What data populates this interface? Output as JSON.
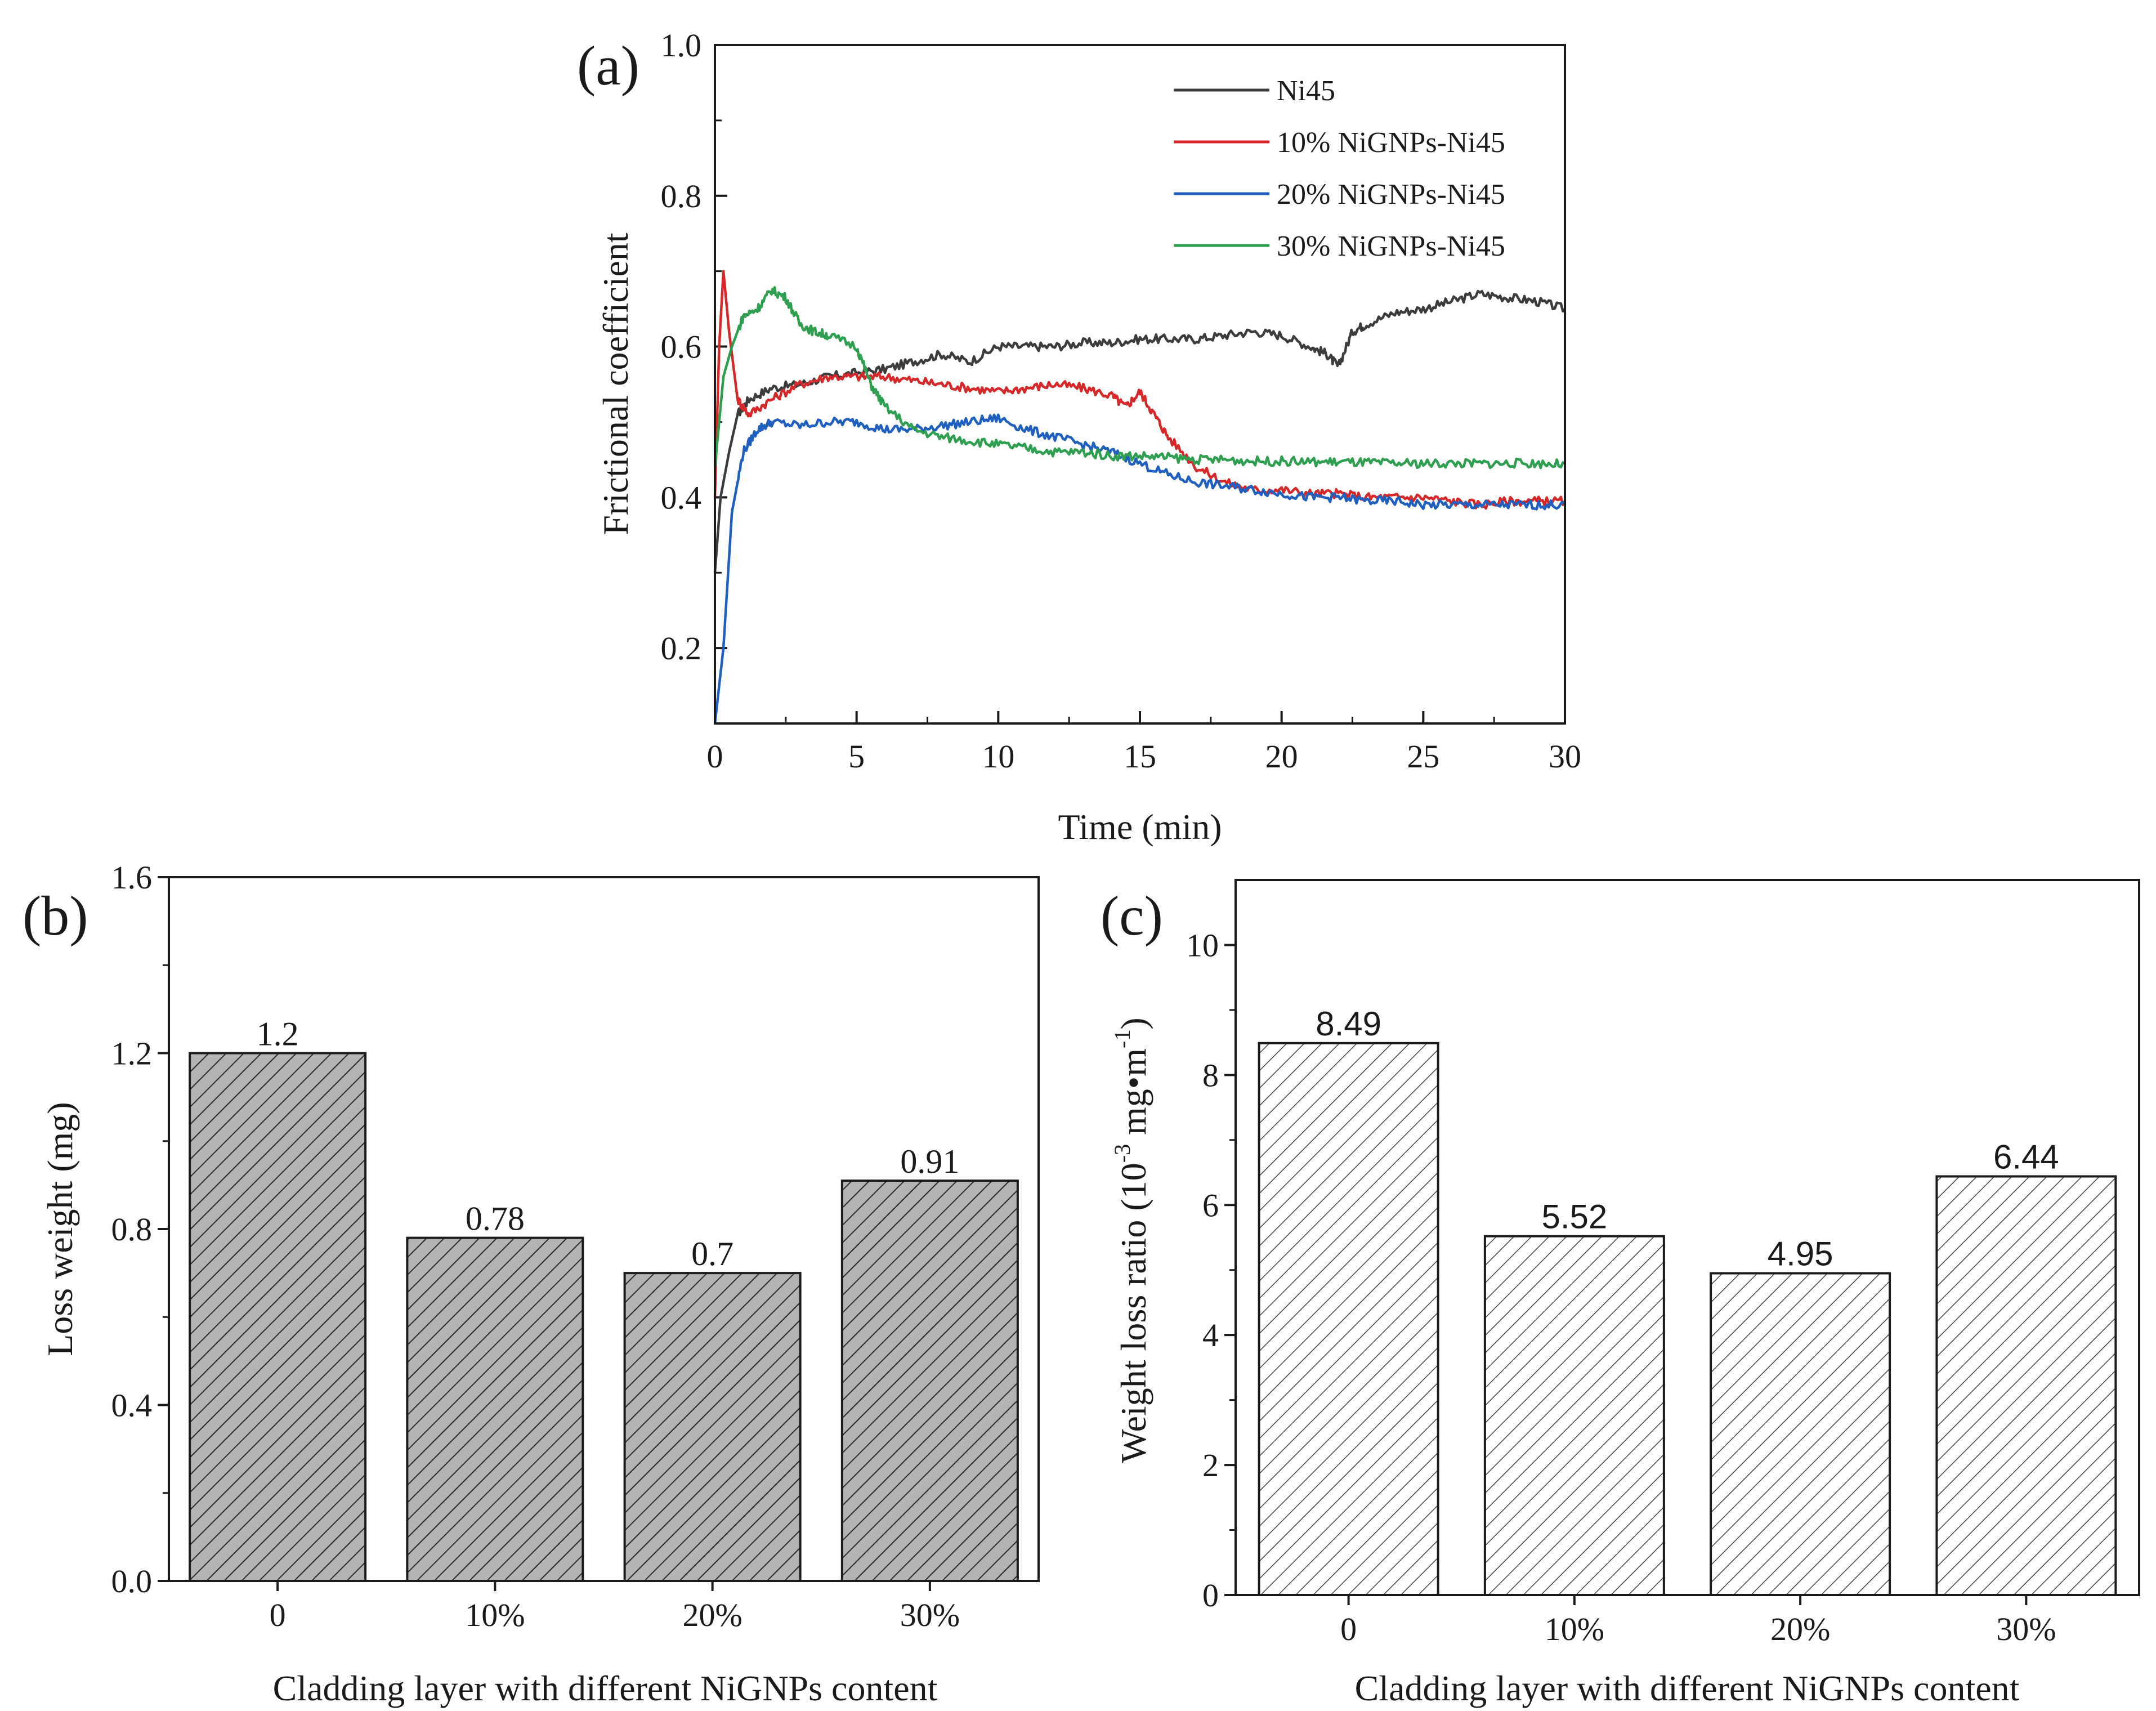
{
  "chart_data": [
    {
      "panel_label": "(a)",
      "type": "line",
      "xlabel": "Time (min)",
      "ylabel": "Frictional coefficient",
      "xlim": [
        0,
        30
      ],
      "ylim": [
        0.1,
        1.0
      ],
      "x_ticks": [
        0,
        5,
        10,
        15,
        20,
        25,
        30
      ],
      "y_ticks": [
        0.2,
        0.4,
        0.6,
        0.8,
        1.0
      ],
      "y_tick_labels": [
        "0.2",
        "0.4",
        "0.6",
        "0.8",
        "1.0"
      ],
      "legend_position": "top-right",
      "grid": false,
      "series": [
        {
          "name": "Ni45",
          "color": "#3c3c3c",
          "points": [
            [
              0,
              0.3
            ],
            [
              0.2,
              0.4
            ],
            [
              0.5,
              0.46
            ],
            [
              0.8,
              0.51
            ],
            [
              1.2,
              0.53
            ],
            [
              2,
              0.545
            ],
            [
              3,
              0.55
            ],
            [
              4,
              0.56
            ],
            [
              5,
              0.565
            ],
            [
              6,
              0.57
            ],
            [
              7,
              0.58
            ],
            [
              8,
              0.59
            ],
            [
              9,
              0.58
            ],
            [
              10,
              0.6
            ],
            [
              11,
              0.6
            ],
            [
              12,
              0.6
            ],
            [
              13,
              0.605
            ],
            [
              14,
              0.605
            ],
            [
              15,
              0.61
            ],
            [
              16,
              0.61
            ],
            [
              17,
              0.61
            ],
            [
              18,
              0.615
            ],
            [
              19,
              0.62
            ],
            [
              20,
              0.615
            ],
            [
              21,
              0.6
            ],
            [
              21.6,
              0.59
            ],
            [
              22,
              0.573
            ],
            [
              22.5,
              0.62
            ],
            [
              23,
              0.63
            ],
            [
              24,
              0.645
            ],
            [
              25,
              0.65
            ],
            [
              26,
              0.66
            ],
            [
              27,
              0.67
            ],
            [
              28,
              0.665
            ],
            [
              29,
              0.66
            ],
            [
              30,
              0.65
            ]
          ]
        },
        {
          "name": "10% NiGNPs-Ni45",
          "color": "#d62828",
          "points": [
            [
              0,
              0.4
            ],
            [
              0.15,
              0.6
            ],
            [
              0.3,
              0.7
            ],
            [
              0.5,
              0.62
            ],
            [
              0.8,
              0.53
            ],
            [
              1.2,
              0.51
            ],
            [
              2,
              0.53
            ],
            [
              3,
              0.55
            ],
            [
              4,
              0.56
            ],
            [
              5,
              0.56
            ],
            [
              6,
              0.56
            ],
            [
              7,
              0.555
            ],
            [
              8,
              0.55
            ],
            [
              9,
              0.545
            ],
            [
              10,
              0.54
            ],
            [
              11,
              0.545
            ],
            [
              12,
              0.55
            ],
            [
              13,
              0.545
            ],
            [
              14,
              0.535
            ],
            [
              14.5,
              0.52
            ],
            [
              15,
              0.54
            ],
            [
              15.5,
              0.51
            ],
            [
              16,
              0.48
            ],
            [
              17,
              0.44
            ],
            [
              18,
              0.42
            ],
            [
              19,
              0.41
            ],
            [
              20,
              0.41
            ],
            [
              21,
              0.405
            ],
            [
              22,
              0.405
            ],
            [
              23,
              0.4
            ],
            [
              24,
              0.4
            ],
            [
              25,
              0.4
            ],
            [
              26,
              0.395
            ],
            [
              27,
              0.39
            ],
            [
              28,
              0.395
            ],
            [
              29,
              0.395
            ],
            [
              30,
              0.395
            ]
          ]
        },
        {
          "name": "20% NiGNPs-Ni45",
          "color": "#1f5fbf",
          "points": [
            [
              0,
              0.1
            ],
            [
              0.3,
              0.2
            ],
            [
              0.6,
              0.38
            ],
            [
              1,
              0.46
            ],
            [
              1.5,
              0.49
            ],
            [
              2,
              0.5
            ],
            [
              3,
              0.495
            ],
            [
              4,
              0.5
            ],
            [
              5,
              0.5
            ],
            [
              6,
              0.49
            ],
            [
              7,
              0.49
            ],
            [
              8,
              0.495
            ],
            [
              9,
              0.5
            ],
            [
              10,
              0.505
            ],
            [
              11,
              0.49
            ],
            [
              12,
              0.48
            ],
            [
              13,
              0.47
            ],
            [
              14,
              0.46
            ],
            [
              15,
              0.445
            ],
            [
              16,
              0.43
            ],
            [
              17,
              0.42
            ],
            [
              18,
              0.415
            ],
            [
              19,
              0.41
            ],
            [
              20,
              0.405
            ],
            [
              21,
              0.4
            ],
            [
              22,
              0.4
            ],
            [
              23,
              0.395
            ],
            [
              24,
              0.395
            ],
            [
              25,
              0.39
            ],
            [
              26,
              0.39
            ],
            [
              27,
              0.39
            ],
            [
              28,
              0.39
            ],
            [
              29,
              0.39
            ],
            [
              30,
              0.39
            ]
          ]
        },
        {
          "name": "30% NiGNPs-Ni45",
          "color": "#2e9e4f",
          "points": [
            [
              0,
              0.44
            ],
            [
              0.3,
              0.56
            ],
            [
              0.6,
              0.6
            ],
            [
              1,
              0.64
            ],
            [
              1.5,
              0.65
            ],
            [
              2,
              0.675
            ],
            [
              2.5,
              0.665
            ],
            [
              3,
              0.63
            ],
            [
              3.5,
              0.62
            ],
            [
              4,
              0.615
            ],
            [
              5,
              0.6
            ],
            [
              5.5,
              0.55
            ],
            [
              6,
              0.52
            ],
            [
              7,
              0.49
            ],
            [
              8,
              0.48
            ],
            [
              9,
              0.475
            ],
            [
              10,
              0.47
            ],
            [
              11,
              0.465
            ],
            [
              12,
              0.46
            ],
            [
              13,
              0.46
            ],
            [
              14,
              0.455
            ],
            [
              15,
              0.455
            ],
            [
              16,
              0.453
            ],
            [
              17,
              0.45
            ],
            [
              18,
              0.45
            ],
            [
              19,
              0.448
            ],
            [
              20,
              0.448
            ],
            [
              21,
              0.447
            ],
            [
              22,
              0.447
            ],
            [
              23,
              0.446
            ],
            [
              24,
              0.445
            ],
            [
              25,
              0.445
            ],
            [
              26,
              0.445
            ],
            [
              27,
              0.445
            ],
            [
              28,
              0.445
            ],
            [
              29,
              0.445
            ],
            [
              30,
              0.444
            ]
          ]
        }
      ]
    },
    {
      "panel_label": "(b)",
      "type": "bar",
      "xlabel": "Cladding layer with different NiGNPs content",
      "ylabel": "Loss weight (mg)",
      "categories": [
        "0",
        "10%",
        "20%",
        "30%"
      ],
      "values": [
        1.2,
        0.78,
        0.7,
        0.91
      ],
      "value_labels": [
        "1.2",
        "0.78",
        "0.7",
        "0.91"
      ],
      "ylim": [
        0,
        1.6
      ],
      "y_ticks": [
        0,
        0.4,
        0.8,
        1.2,
        1.6
      ],
      "y_tick_labels": [
        "0.0",
        "0.4",
        "0.8",
        "1.2",
        "1.6"
      ],
      "bar_fill": "#b4b4b4",
      "pattern": "dense-hatch",
      "grid": false
    },
    {
      "panel_label": "(c)",
      "type": "bar",
      "xlabel": "Cladding layer with different NiGNPs content",
      "ylabel": "Weight loss ratio (10",
      "ylabel_sup": "-3",
      "ylabel_unit": " mg•m",
      "ylabel_unit_sup": "-1",
      "ylabel_close": ")",
      "categories": [
        "0",
        "10%",
        "20%",
        "30%"
      ],
      "values": [
        8.49,
        5.52,
        4.95,
        6.44
      ],
      "value_labels": [
        "8.49",
        "5.52",
        "4.95",
        "6.44"
      ],
      "ylim": [
        0,
        11
      ],
      "y_ticks": [
        0,
        2,
        4,
        6,
        8,
        10
      ],
      "y_tick_labels": [
        "0",
        "2",
        "4",
        "6",
        "8",
        "10"
      ],
      "bar_fill": "#ffffff",
      "pattern": "light-hatch",
      "grid": false
    }
  ]
}
